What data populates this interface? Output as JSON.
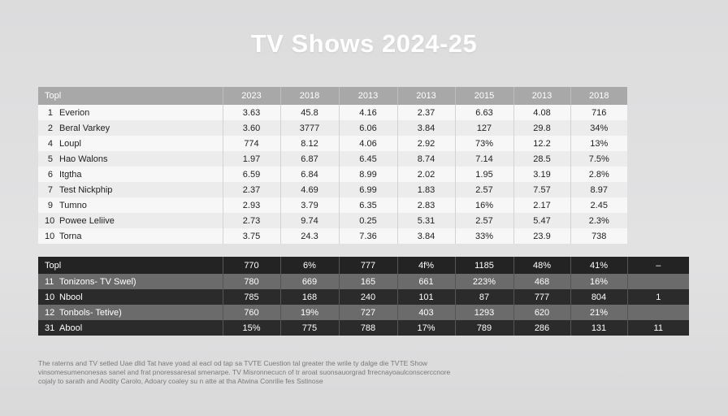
{
  "title": "TV Shows 2024-25",
  "chart_data": {
    "type": "table",
    "title": "TV Shows 2024-25",
    "tables": [
      {
        "header": [
          "Topl",
          "2023",
          "2018",
          "2013",
          "2013",
          "2015",
          "2013",
          "2018"
        ],
        "rows": [
          {
            "rank": "1",
            "name": "Everion",
            "values": [
              "3.63",
              "45.8",
              "4.16",
              "2.37",
              "6.63",
              "4.08",
              "716"
            ]
          },
          {
            "rank": "2",
            "name": "Beral Varkey",
            "values": [
              "3.60",
              "3777",
              "6.06",
              "3.84",
              "127",
              "29.8",
              "34%"
            ]
          },
          {
            "rank": "4",
            "name": "Loupl",
            "values": [
              "774",
              "8.12",
              "4.06",
              "2.92",
              "73%",
              "12.2",
              "13%"
            ]
          },
          {
            "rank": "5",
            "name": "Hao Walons",
            "values": [
              "1.97",
              "6.87",
              "6.45",
              "8.74",
              "7.14",
              "28.5",
              "7.5%"
            ]
          },
          {
            "rank": "6",
            "name": "Itgtha",
            "values": [
              "6.59",
              "6.84",
              "8.99",
              "2.02",
              "1.95",
              "3.19",
              "2.8%"
            ]
          },
          {
            "rank": "7",
            "name": "Test Nickphip",
            "values": [
              "2.37",
              "4.69",
              "6.99",
              "1.83",
              "2.57",
              "7.57",
              "8.97"
            ]
          },
          {
            "rank": "9",
            "name": "Tumno",
            "values": [
              "2.93",
              "3.79",
              "6.35",
              "2.83",
              "16%",
              "2.17",
              "2.45"
            ]
          },
          {
            "rank": "10",
            "name": "Powee Leliive",
            "values": [
              "2.73",
              "9.74",
              "0.25",
              "5.31",
              "2.57",
              "5.47",
              "2.3%"
            ]
          },
          {
            "rank": "10",
            "name": "Torna",
            "values": [
              "3.75",
              "24.3",
              "7.36",
              "3.84",
              "33%",
              "23.9",
              "738"
            ]
          }
        ]
      },
      {
        "header": [
          "Topl",
          "770",
          "6%",
          "777",
          "4f%",
          "1185",
          "48%",
          "41%",
          "–"
        ],
        "rows": [
          {
            "rank": "11",
            "name": "Tonizons- TV Swel)",
            "values": [
              "780",
              "669",
              "165",
              "661",
              "223%",
              "468",
              "16%",
              ""
            ]
          },
          {
            "rank": "10",
            "name": "Nbool",
            "values": [
              "785",
              "168",
              "240",
              "101",
              "87",
              "777",
              "804",
              "1"
            ]
          },
          {
            "rank": "12",
            "name": "Tonbols- Tetive)",
            "values": [
              "760",
              "19%",
              "727",
              "403",
              "1293",
              "620",
              "21%",
              ""
            ]
          },
          {
            "rank": "31",
            "name": "Abool",
            "values": [
              "15%",
              "775",
              "788",
              "17%",
              "789",
              "286",
              "131",
              "11"
            ]
          }
        ]
      }
    ]
  },
  "footnote": [
    "The raterns and TV setled Uae dlid Tat have yoad al eacl od tap sa TVTE Cuestion tal greater the wrile ty dalge die TVTE Show",
    "vinsomesumenonesas sanel and frat pnoressaresal smenarpe. TV Misronnecucn of tr aroat suonsauorgrad frrecnayoaulconscerccnore",
    "cojaly to sarath and Aodity Carolo, Adoary coaley su n atte at tha Atwina Conrilie fes Sstinose"
  ],
  "colors": {
    "background": "#dedede",
    "top_header": "#a8a8a9",
    "bottom_header": "#232324",
    "bottom_row_dark": "#2b2b2c",
    "bottom_row_light": "#6b6b6c"
  }
}
